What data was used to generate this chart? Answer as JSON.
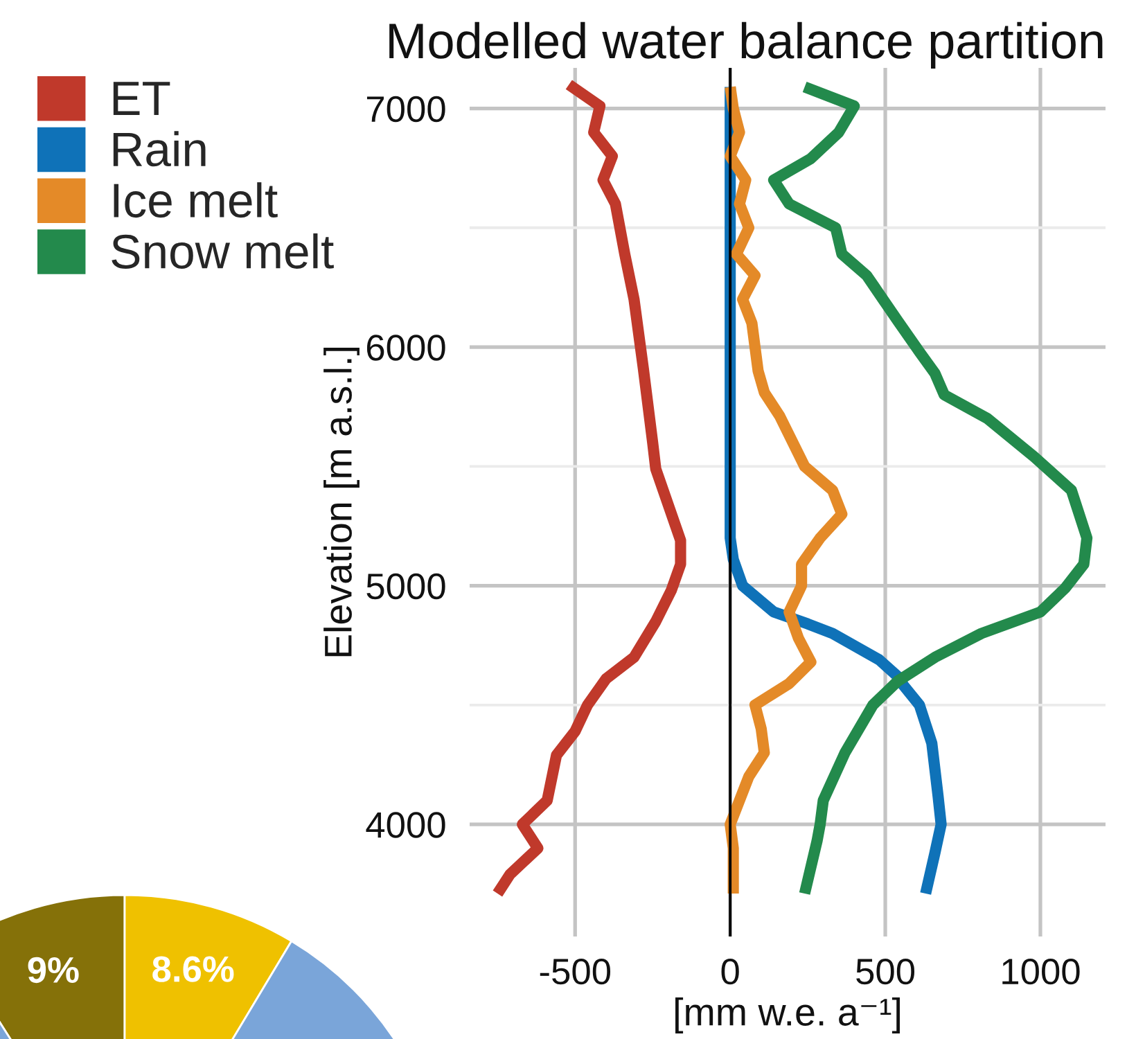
{
  "chart_data": [
    {
      "type": "line",
      "title": "Modelled water balance partition",
      "xlabel": "[mm w.e. a⁻¹]",
      "ylabel": "Elevation [m a.s.l.]",
      "orientation": "horizontal",
      "series": [
        {
          "name": "ET",
          "color": "#c0392b",
          "x": [
            3710,
            3790,
            3900,
            4000,
            4100,
            4290,
            4390,
            4500,
            4610,
            4700,
            4850,
            4980,
            5090,
            5190,
            5490,
            5600,
            5910,
            6200,
            6390,
            6600,
            6700,
            6800,
            6900,
            7010,
            7100
          ],
          "values": [
            -750,
            -710,
            -620,
            -670,
            -590,
            -560,
            -500,
            -460,
            -400,
            -310,
            -240,
            -190,
            -160,
            -160,
            -240,
            -250,
            -280,
            -310,
            -340,
            -370,
            -410,
            -380,
            -440,
            -420,
            -520
          ]
        },
        {
          "name": "Rain",
          "color": "#0f72b8",
          "x": [
            3710,
            3880,
            4000,
            4120,
            4340,
            4500,
            4580,
            4620,
            4690,
            4800,
            4840,
            4890,
            5000,
            5110,
            5200,
            7090
          ],
          "values": [
            630,
            660,
            680,
            670,
            650,
            610,
            560,
            540,
            480,
            330,
            250,
            140,
            40,
            10,
            0,
            0
          ]
        },
        {
          "name": "Ice melt",
          "color": "#e48a28",
          "x": [
            3710,
            3900,
            4000,
            4100,
            4200,
            4300,
            4400,
            4500,
            4590,
            4680,
            4780,
            4890,
            5000,
            5090,
            5200,
            5300,
            5400,
            5500,
            5710,
            5810,
            5900,
            6000,
            6100,
            6200,
            6300,
            6390,
            6500,
            6600,
            6700,
            6800,
            6900,
            7000,
            7090
          ],
          "values": [
            10,
            10,
            0,
            30,
            60,
            110,
            100,
            80,
            190,
            260,
            220,
            190,
            230,
            230,
            290,
            360,
            330,
            240,
            160,
            110,
            90,
            80,
            70,
            40,
            80,
            20,
            60,
            30,
            50,
            0,
            30,
            10,
            0
          ]
        },
        {
          "name": "Snow melt",
          "color": "#238a4c",
          "x": [
            3710,
            3930,
            4000,
            4100,
            4300,
            4500,
            4600,
            4700,
            4800,
            4890,
            4990,
            5090,
            5200,
            5400,
            5540,
            5700,
            5800,
            5890,
            5980,
            6110,
            6300,
            6390,
            6500,
            6600,
            6700,
            6790,
            6900,
            7010,
            7090
          ],
          "values": [
            240,
            280,
            290,
            300,
            370,
            460,
            540,
            660,
            810,
            1000,
            1080,
            1140,
            1150,
            1100,
            980,
            830,
            690,
            660,
            610,
            540,
            440,
            360,
            340,
            190,
            140,
            260,
            350,
            400,
            240
          ]
        }
      ],
      "xlim": [
        -840,
        1210
      ],
      "xticks": [
        -500,
        0,
        500,
        1000
      ],
      "ylim": [
        3530,
        7170
      ],
      "yticks": [
        4000,
        {
          "value": 4500,
          "label": null
        },
        5000,
        {
          "value": 5500,
          "label": null
        },
        6000,
        {
          "value": 6500,
          "label": null
        },
        7000
      ],
      "grid": true,
      "legend": "top left",
      "ref_lines": [
        {
          "axis": "x",
          "value": 0,
          "color": "#000000"
        }
      ]
    },
    {
      "type": "pie",
      "categories": [
        null,
        null,
        null
      ],
      "values": [
        9,
        8.6,
        82.4
      ],
      "colors": [
        "#857109",
        "#efc100",
        "#7aa5d9"
      ],
      "value_labels": [
        "9%",
        "8.6%",
        null
      ]
    }
  ]
}
